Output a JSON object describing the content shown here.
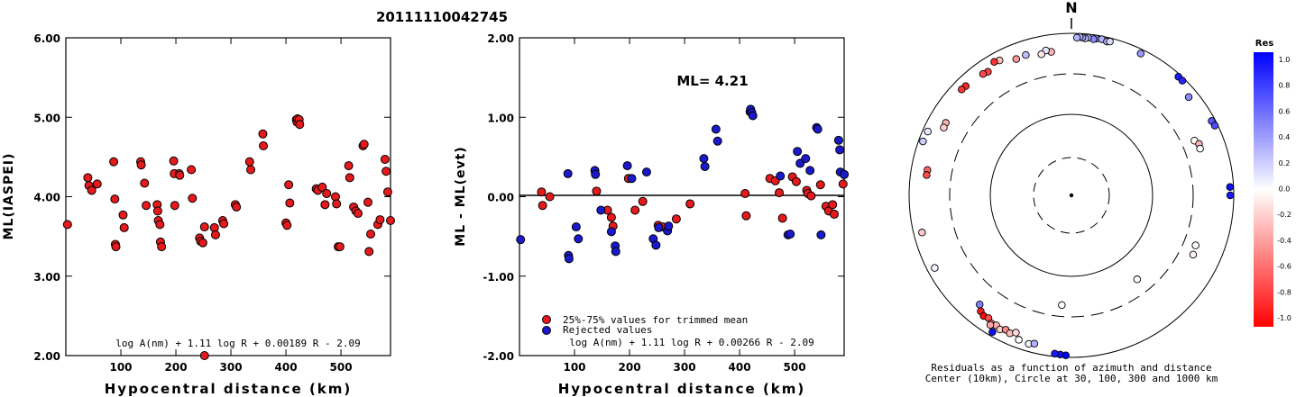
{
  "title": "20111110042745",
  "chart_data": [
    {
      "type": "scatter",
      "ylabel": "ML(IASPEI)",
      "xlabel": "Hypocentral distance (km)",
      "xlim": [
        0,
        590
      ],
      "ylim": [
        2.0,
        6.0
      ],
      "xticks": [
        "100",
        "200",
        "300",
        "400",
        "500"
      ],
      "yticks": [
        "2.00",
        "3.00",
        "4.00",
        "5.00",
        "6.00"
      ],
      "formula": "log A(nm) + 1.11 log R + 0.00189 R - 2.09",
      "marker_color": "#e41a1c",
      "x": [
        3,
        40,
        42,
        47,
        57,
        87,
        89,
        90,
        91,
        104,
        106,
        136,
        137,
        143,
        146,
        166,
        167,
        168,
        171,
        172,
        174,
        196,
        197,
        198,
        206,
        207,
        228,
        230,
        243,
        245,
        249,
        252,
        252,
        270,
        272,
        285,
        287,
        308,
        310,
        334,
        336,
        358,
        359,
        400,
        402,
        405,
        407,
        419,
        420,
        421,
        424,
        425,
        455,
        458,
        466,
        471,
        474,
        490,
        492,
        495,
        498,
        514,
        516,
        523,
        527,
        531,
        540,
        542,
        549,
        551,
        554,
        567,
        571,
        580,
        582,
        585,
        590
      ],
      "y": [
        3.65,
        4.24,
        4.14,
        4.08,
        4.16,
        4.44,
        3.97,
        3.4,
        3.37,
        3.77,
        3.61,
        4.44,
        4.4,
        4.17,
        3.89,
        3.9,
        3.82,
        3.7,
        3.65,
        3.43,
        3.37,
        4.45,
        4.29,
        3.89,
        4.29,
        4.27,
        4.34,
        3.98,
        3.48,
        3.44,
        3.42,
        3.62,
        1.98,
        3.61,
        3.52,
        3.7,
        3.66,
        3.9,
        3.87,
        4.44,
        4.34,
        4.79,
        4.64,
        3.67,
        3.64,
        4.15,
        3.92,
        4.97,
        4.94,
        4.98,
        4.97,
        4.91,
        4.1,
        4.08,
        4.12,
        3.9,
        4.04,
        4.0,
        3.91,
        3.37,
        3.37,
        4.39,
        4.24,
        3.87,
        3.82,
        3.79,
        4.64,
        4.66,
        3.93,
        3.31,
        3.53,
        3.65,
        3.71,
        4.47,
        4.32,
        4.06,
        3.7
      ]
    },
    {
      "type": "scatter",
      "ylabel": "ML - ML(evt)",
      "xlabel": "Hypocentral distance (km)",
      "xlim": [
        0,
        590
      ],
      "ylim": [
        -2.0,
        2.0
      ],
      "xticks": [
        "100",
        "200",
        "300",
        "400",
        "500"
      ],
      "yticks": [
        "-2.00",
        "-1.00",
        "0.00",
        "1.00",
        "2.00"
      ],
      "formula": "log A(nm) + 1.11 log R + 0.00266 R - 2.09",
      "annotation": "ML=  4.21",
      "reference_line": 0,
      "legend": [
        {
          "label": "25%-75% values for trimmed mean",
          "color": "#e41a1c"
        },
        {
          "label": "Rejected values",
          "color": "#1a1acc"
        }
      ],
      "accepted": {
        "x": [
          40,
          42,
          55,
          140,
          160,
          167,
          170,
          198,
          210,
          224,
          252,
          260,
          285,
          310,
          410,
          412,
          455,
          465,
          472,
          478,
          496,
          503,
          522,
          524,
          530,
          547,
          557,
          562,
          569,
          572,
          588,
          590
        ],
        "y": [
          0.06,
          -0.11,
          0.0,
          0.07,
          -0.17,
          -0.26,
          -0.37,
          0.23,
          -0.17,
          -0.06,
          -0.36,
          -0.38,
          -0.28,
          -0.09,
          0.04,
          -0.24,
          0.23,
          0.2,
          0.05,
          -0.27,
          0.25,
          0.19,
          0.08,
          0.04,
          0.01,
          0.15,
          -0.12,
          -0.18,
          -0.1,
          -0.22,
          0.16,
          0.28
        ]
      },
      "rejected": {
        "x": [
          2,
          88,
          89,
          90,
          103,
          107,
          137,
          138,
          148,
          167,
          174,
          175,
          196,
          204,
          231,
          243,
          248,
          253,
          269,
          271,
          335,
          337,
          357,
          360,
          419,
          420,
          422,
          424,
          474,
          488,
          492,
          505,
          510,
          520,
          528,
          540,
          542,
          548,
          580,
          582,
          583,
          590
        ],
        "y": [
          -0.54,
          0.29,
          -0.74,
          -0.78,
          -0.38,
          -0.53,
          0.33,
          0.28,
          -0.17,
          -0.44,
          -0.62,
          -0.69,
          0.39,
          0.23,
          0.31,
          -0.53,
          -0.61,
          -0.39,
          -0.43,
          -0.37,
          0.48,
          0.38,
          0.85,
          0.7,
          1.07,
          1.1,
          1.06,
          1.02,
          0.26,
          -0.48,
          -0.47,
          0.57,
          0.42,
          0.48,
          0.33,
          0.87,
          0.85,
          -0.48,
          0.71,
          0.59,
          0.31,
          0.28
        ]
      }
    },
    {
      "type": "polar-scatter",
      "north_label": "N",
      "caption_line1": "Residuals as a function of azimuth and distance",
      "caption_line2": "Center (10km), Circle at 30, 100, 300 and 1000 km",
      "colorbar": {
        "title": "Res",
        "ticks": [
          "1.0",
          "0.8",
          "0.6",
          "0.4",
          "0.2",
          "0.0",
          "-0.2",
          "-0.4",
          "-0.6",
          "-0.8",
          "-1.0"
        ],
        "max_color": "#0000ff",
        "zero_color": "#ffffff",
        "min_color": "#ff0000"
      },
      "stations": [
        {
          "az": 9,
          "dist": 905,
          "res": 0.5
        },
        {
          "az": 11,
          "dist": 915,
          "res": 0.3
        },
        {
          "az": 13,
          "dist": 885,
          "res": 0.25
        },
        {
          "az": 8,
          "dist": 880,
          "res": 0.45
        },
        {
          "az": 6,
          "dist": 900,
          "res": 0.35
        },
        {
          "az": 5,
          "dist": 875,
          "res": 0.2
        },
        {
          "az": 4,
          "dist": 890,
          "res": 0.4
        },
        {
          "az": 3,
          "dist": 905,
          "res": 0.3
        },
        {
          "az": 14,
          "dist": 900,
          "res": 0.15
        },
        {
          "az": 2,
          "dist": 880,
          "res": 0.3
        },
        {
          "az": 26,
          "dist": 880,
          "res": 0.4
        },
        {
          "az": 42,
          "dist": 930,
          "res": 0.9
        },
        {
          "az": 44,
          "dist": 925,
          "res": 0.85
        },
        {
          "az": 50,
          "dist": 760,
          "res": 0.45
        },
        {
          "az": 62,
          "dist": 900,
          "res": 0.65
        },
        {
          "az": 64,
          "dist": 920,
          "res": 0.7
        },
        {
          "az": 87,
          "dist": 900,
          "res": 0.95
        },
        {
          "az": 90,
          "dist": 900,
          "res": 0.9
        },
        {
          "az": -8,
          "dist": 600,
          "res": -0.3
        },
        {
          "az": -10,
          "dist": 640,
          "res": 0.1
        },
        {
          "az": -12,
          "dist": 590,
          "res": -0.1
        },
        {
          "az": -18,
          "dist": 650,
          "res": 0.25
        },
        {
          "az": -22,
          "dist": 640,
          "res": -0.4
        },
        {
          "az": -28,
          "dist": 760,
          "res": -0.25
        },
        {
          "az": -30,
          "dist": 790,
          "res": -0.8
        },
        {
          "az": -34,
          "dist": 680,
          "res": -0.75
        },
        {
          "az": -36,
          "dist": 700,
          "res": -0.7
        },
        {
          "az": -44,
          "dist": 740,
          "res": -0.85
        },
        {
          "az": -46,
          "dist": 750,
          "res": -0.8
        },
        {
          "az": -60,
          "dist": 600,
          "res": -0.3
        },
        {
          "az": -62,
          "dist": 590,
          "res": -0.2
        },
        {
          "az": -66,
          "dist": 860,
          "res": 0.1
        },
        {
          "az": -70,
          "dist": 880,
          "res": 0.2
        },
        {
          "az": -80,
          "dist": 620,
          "res": -0.6
        },
        {
          "az": -82,
          "dist": 620,
          "res": -0.7
        },
        {
          "az": -104,
          "dist": 780,
          "res": -0.2
        },
        {
          "az": -118,
          "dist": 800,
          "res": 0.05
        },
        {
          "az": -140,
          "dist": 560,
          "res": 0.5
        },
        {
          "az": -142,
          "dist": 640,
          "res": -0.9
        },
        {
          "az": -144,
          "dist": 680,
          "res": -0.95
        },
        {
          "az": -146,
          "dist": 660,
          "res": -0.7
        },
        {
          "az": -148,
          "dist": 720,
          "res": -0.5
        },
        {
          "az": -150,
          "dist": 700,
          "res": -0.3
        },
        {
          "az": -152,
          "dist": 740,
          "res": -0.2
        },
        {
          "az": -148,
          "dist": 760,
          "res": -0.35
        },
        {
          "az": -154,
          "dist": 690,
          "res": -0.45
        },
        {
          "az": -156,
          "dist": 720,
          "res": -0.25
        },
        {
          "az": -158,
          "dist": 660,
          "res": -0.15
        },
        {
          "az": -160,
          "dist": 780,
          "res": 0.0
        },
        {
          "az": -164,
          "dist": 800,
          "res": 0.05
        },
        {
          "az": -166,
          "dist": 760,
          "res": 0.3
        },
        {
          "az": -150,
          "dist": 880,
          "res": 0.95
        },
        {
          "az": -176,
          "dist": 930,
          "res": 0.95
        },
        {
          "az": -178,
          "dist": 945,
          "res": 1.0
        },
        {
          "az": -174,
          "dist": 920,
          "res": 0.9
        },
        {
          "az": 112,
          "dist": 430,
          "res": 0.0
        },
        {
          "az": 116,
          "dist": 450,
          "res": -0.05
        },
        {
          "az": 142,
          "dist": 200,
          "res": 0.0
        },
        {
          "az": 66,
          "dist": 440,
          "res": 0.0
        },
        {
          "az": 68,
          "dist": 480,
          "res": -0.3
        },
        {
          "az": 70,
          "dist": 470,
          "res": 0.0
        },
        {
          "az": -175,
          "dist": 220,
          "res": 0.0
        }
      ]
    }
  ]
}
